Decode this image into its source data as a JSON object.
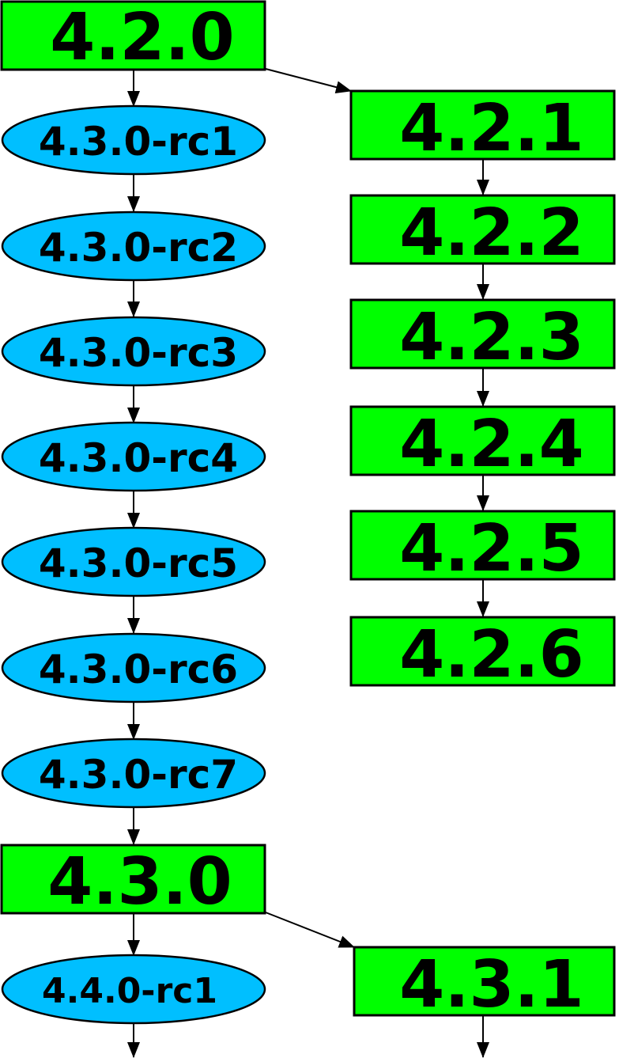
{
  "colors": {
    "release_fill": "#00ff00",
    "release_candidate_fill": "#00bfff",
    "outline": "#000000"
  },
  "nodes": {
    "v420": "4.2.0",
    "v421": "4.2.1",
    "v422": "4.2.2",
    "v423": "4.2.3",
    "v424": "4.2.4",
    "v425": "4.2.5",
    "v426": "4.2.6",
    "v430rc1": "4.3.0-rc1",
    "v430rc2": "4.3.0-rc2",
    "v430rc3": "4.3.0-rc3",
    "v430rc4": "4.3.0-rc4",
    "v430rc5": "4.3.0-rc5",
    "v430rc6": "4.3.0-rc6",
    "v430rc7": "4.3.0-rc7",
    "v430": "4.3.0",
    "v431": "4.3.1",
    "v440rc1": "4.4.0-rc1"
  },
  "edges": [
    [
      "4.2.0",
      "4.3.0-rc1"
    ],
    [
      "4.2.0",
      "4.2.1"
    ],
    [
      "4.2.1",
      "4.2.2"
    ],
    [
      "4.2.2",
      "4.2.3"
    ],
    [
      "4.2.3",
      "4.2.4"
    ],
    [
      "4.2.4",
      "4.2.5"
    ],
    [
      "4.2.5",
      "4.2.6"
    ],
    [
      "4.3.0-rc1",
      "4.3.0-rc2"
    ],
    [
      "4.3.0-rc2",
      "4.3.0-rc3"
    ],
    [
      "4.3.0-rc3",
      "4.3.0-rc4"
    ],
    [
      "4.3.0-rc4",
      "4.3.0-rc5"
    ],
    [
      "4.3.0-rc5",
      "4.3.0-rc6"
    ],
    [
      "4.3.0-rc6",
      "4.3.0-rc7"
    ],
    [
      "4.3.0-rc7",
      "4.3.0"
    ],
    [
      "4.3.0",
      "4.4.0-rc1"
    ],
    [
      "4.3.0",
      "4.3.1"
    ]
  ]
}
